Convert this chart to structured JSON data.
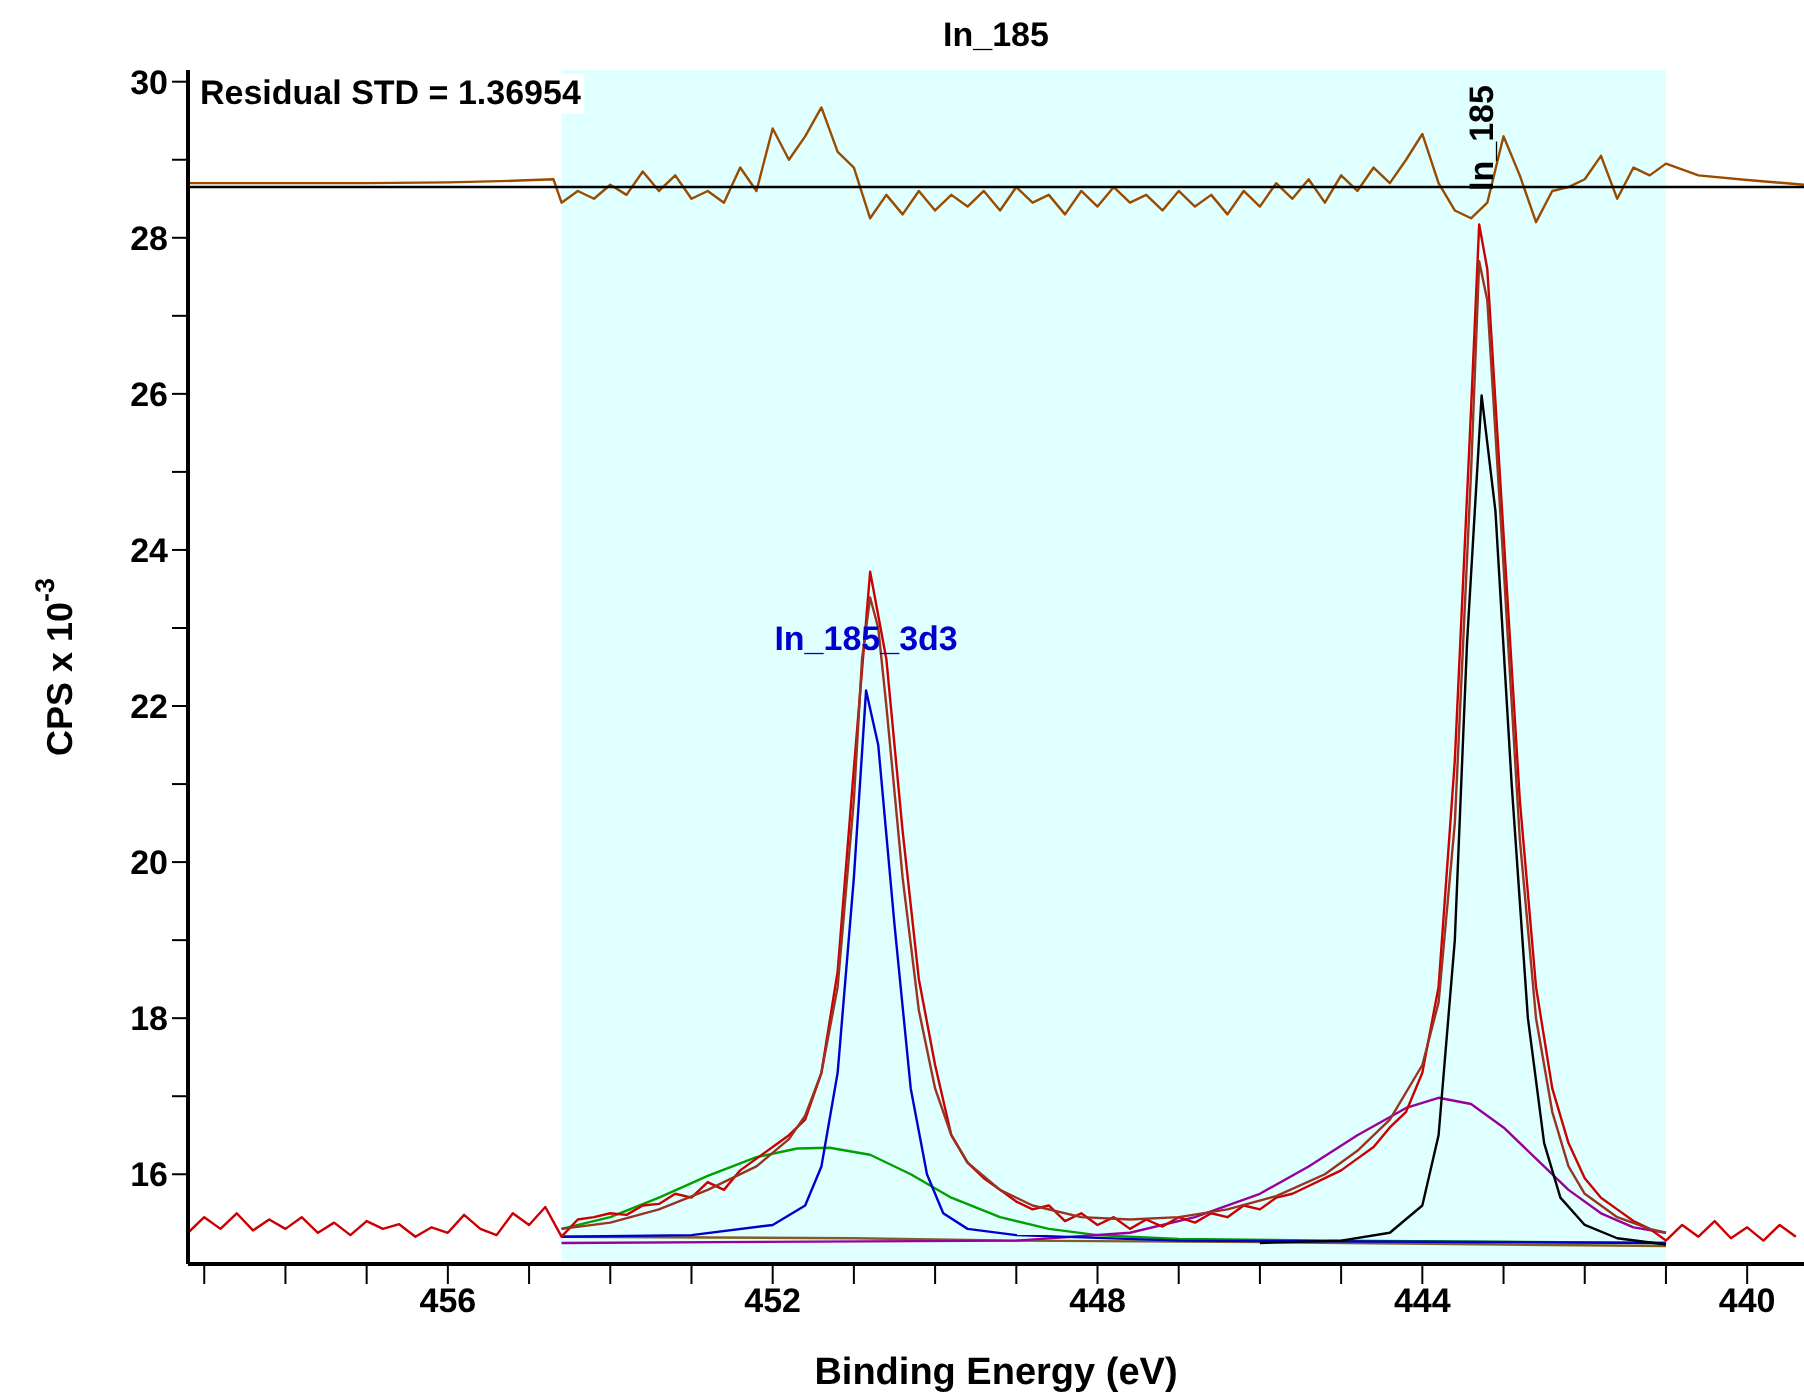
{
  "chart_data": {
    "type": "line",
    "title": "In_185",
    "xlabel": "Binding Energy (eV)",
    "ylabel": "CPS x 10$^{-3}$",
    "xlim": [
      459.2,
      439.3
    ],
    "ylim": [
      14.85,
      30.15
    ],
    "xticks": [
      {
        "value": 459,
        "label": null
      },
      {
        "value": 458,
        "label": null
      },
      {
        "value": 457,
        "label": null
      },
      456,
      {
        "value": 455,
        "label": null
      },
      {
        "value": 454,
        "label": null
      },
      {
        "value": 453,
        "label": null
      },
      452,
      {
        "value": 451,
        "label": null
      },
      {
        "value": 450,
        "label": null
      },
      {
        "value": 449,
        "label": null
      },
      448,
      {
        "value": 447,
        "label": null
      },
      {
        "value": 446,
        "label": null
      },
      {
        "value": 445,
        "label": null
      },
      444,
      {
        "value": 443,
        "label": null
      },
      {
        "value": 442,
        "label": null
      },
      {
        "value": 441,
        "label": null
      },
      440
    ],
    "yticks": [
      16,
      {
        "value": 17,
        "label": null
      },
      18,
      {
        "value": 19,
        "label": null
      },
      20,
      {
        "value": 21,
        "label": null
      },
      22,
      {
        "value": 23,
        "label": null
      },
      24,
      {
        "value": 25,
        "label": null
      },
      26,
      {
        "value": 27,
        "label": null
      },
      28,
      {
        "value": 29,
        "label": null
      },
      30
    ],
    "grid": false,
    "marker": "none",
    "line_style": "solid",
    "bands": [
      {
        "axis": "x",
        "from": 454.6,
        "to": 441.0,
        "color": "#e0ffff"
      }
    ],
    "ref_lines": [
      {
        "axis": "y",
        "value": 28.65,
        "color": "#000000"
      }
    ],
    "annotations": [
      "Residual STD = 1.36954"
    ],
    "series": [
      {
        "color": "#994c00",
        "x": [
          459.2,
          457.0,
          456.0,
          455.2,
          454.7,
          454.6,
          454.4,
          454.2,
          454.0,
          453.8,
          453.6,
          453.4,
          453.2,
          453.0,
          452.8,
          452.6,
          452.4,
          452.2,
          452.0,
          451.8,
          451.6,
          451.4,
          451.2,
          451.0,
          450.8,
          450.6,
          450.4,
          450.2,
          450.0,
          449.8,
          449.6,
          449.4,
          449.2,
          449.0,
          448.8,
          448.6,
          448.4,
          448.2,
          448.0,
          447.8,
          447.6,
          447.4,
          447.2,
          447.0,
          446.8,
          446.6,
          446.4,
          446.2,
          446.0,
          445.8,
          445.6,
          445.4,
          445.2,
          445.0,
          444.8,
          444.6,
          444.4,
          444.2,
          444.0,
          443.8,
          443.6,
          443.4,
          443.2,
          443.0,
          442.8,
          442.6,
          442.4,
          442.2,
          442.0,
          441.8,
          441.6,
          441.4,
          441.2,
          441.0,
          440.6,
          440.0,
          439.3
        ],
        "values": [
          28.7,
          28.7,
          28.71,
          28.73,
          28.75,
          28.45,
          28.6,
          28.5,
          28.68,
          28.55,
          28.85,
          28.6,
          28.8,
          28.5,
          28.6,
          28.45,
          28.9,
          28.6,
          29.4,
          29.0,
          29.3,
          29.67,
          29.1,
          28.9,
          28.25,
          28.55,
          28.3,
          28.6,
          28.35,
          28.55,
          28.4,
          28.6,
          28.35,
          28.65,
          28.45,
          28.55,
          28.3,
          28.6,
          28.4,
          28.65,
          28.45,
          28.55,
          28.35,
          28.6,
          28.4,
          28.55,
          28.3,
          28.6,
          28.4,
          28.7,
          28.5,
          28.75,
          28.45,
          28.8,
          28.6,
          28.9,
          28.7,
          29.0,
          29.33,
          28.7,
          28.35,
          28.25,
          28.45,
          29.3,
          28.8,
          28.2,
          28.6,
          28.65,
          28.75,
          29.05,
          28.5,
          28.9,
          28.8,
          28.95,
          28.8,
          28.74,
          28.68
        ]
      },
      {
        "color": "#806020",
        "x": [
          454.6,
          451.0,
          449.0,
          446.0,
          443.0,
          441.0
        ],
        "values": [
          15.2,
          15.18,
          15.15,
          15.13,
          15.1,
          15.08
        ]
      },
      {
        "color": "#00a000",
        "x": [
          454.6,
          454.0,
          453.4,
          452.8,
          452.2,
          451.7,
          451.3,
          450.8,
          450.3,
          449.8,
          449.2,
          448.6,
          448.0,
          447.0,
          445.0,
          441.0
        ],
        "values": [
          15.3,
          15.45,
          15.7,
          15.98,
          16.22,
          16.33,
          16.34,
          16.25,
          16.0,
          15.7,
          15.45,
          15.3,
          15.22,
          15.17,
          15.15,
          15.12
        ]
      },
      {
        "color": "#990099",
        "x": [
          454.6,
          449.0,
          447.6,
          446.8,
          446.0,
          445.4,
          444.8,
          444.2,
          443.8,
          443.4,
          443.0,
          442.6,
          442.2,
          441.8,
          441.4,
          441.0
        ],
        "values": [
          15.12,
          15.15,
          15.25,
          15.45,
          15.75,
          16.1,
          16.5,
          16.85,
          16.98,
          16.9,
          16.6,
          16.2,
          15.8,
          15.5,
          15.32,
          15.25
        ]
      },
      {
        "name": "In_185_3d3",
        "color": "#0000cc",
        "x": [
          454.6,
          453.0,
          452.0,
          451.6,
          451.4,
          451.2,
          451.0,
          450.85,
          450.7,
          450.5,
          450.3,
          450.1,
          449.9,
          449.6,
          449.0,
          447.0,
          441.0
        ],
        "values": [
          15.2,
          15.22,
          15.35,
          15.6,
          16.1,
          17.3,
          19.8,
          22.2,
          21.5,
          19.2,
          17.1,
          16.0,
          15.5,
          15.3,
          15.22,
          15.15,
          15.12
        ]
      },
      {
        "name": "In_185",
        "color": "#000000",
        "x": [
          446.0,
          445.0,
          444.4,
          444.0,
          443.8,
          443.6,
          443.45,
          443.27,
          443.1,
          442.9,
          442.7,
          442.5,
          442.3,
          442.0,
          441.6,
          441.0
        ],
        "values": [
          15.12,
          15.15,
          15.25,
          15.6,
          16.5,
          19.0,
          22.8,
          25.98,
          24.5,
          21.0,
          18.0,
          16.4,
          15.7,
          15.35,
          15.18,
          15.1
        ]
      },
      {
        "color": "#cc0000",
        "x": [
          459.2,
          459.0,
          458.8,
          458.6,
          458.4,
          458.2,
          458.0,
          457.8,
          457.6,
          457.4,
          457.2,
          457.0,
          456.8,
          456.6,
          456.4,
          456.2,
          456.0,
          455.8,
          455.6,
          455.4,
          455.2,
          455.0,
          454.8,
          454.6,
          454.4,
          454.2,
          454.0,
          453.8,
          453.6,
          453.4,
          453.2,
          453.0,
          452.8,
          452.6,
          452.4,
          452.2,
          452.0,
          451.8,
          451.6,
          451.4,
          451.2,
          451.0,
          450.8,
          450.6,
          450.4,
          450.2,
          450.0,
          449.8,
          449.6,
          449.4,
          449.2,
          449.0,
          448.8,
          448.6,
          448.4,
          448.2,
          448.0,
          447.8,
          447.6,
          447.4,
          447.2,
          447.0,
          446.8,
          446.6,
          446.4,
          446.2,
          446.0,
          445.8,
          445.6,
          445.4,
          445.2,
          445.0,
          444.8,
          444.6,
          444.4,
          444.2,
          444.0,
          443.8,
          443.6,
          443.4,
          443.3,
          443.2,
          443.0,
          442.8,
          442.6,
          442.4,
          442.2,
          442.0,
          441.8,
          441.6,
          441.4,
          441.2,
          441.0,
          440.8,
          440.6,
          440.4,
          440.2,
          440.0,
          439.8,
          439.6,
          439.4
        ],
        "values": [
          15.25,
          15.45,
          15.3,
          15.5,
          15.28,
          15.42,
          15.3,
          15.45,
          15.25,
          15.38,
          15.22,
          15.4,
          15.3,
          15.36,
          15.2,
          15.32,
          15.25,
          15.48,
          15.3,
          15.22,
          15.5,
          15.35,
          15.58,
          15.2,
          15.42,
          15.45,
          15.5,
          15.48,
          15.6,
          15.62,
          15.75,
          15.7,
          15.9,
          15.8,
          16.05,
          16.2,
          16.35,
          16.5,
          16.7,
          17.3,
          18.6,
          21.2,
          23.72,
          22.6,
          20.4,
          18.5,
          17.4,
          16.5,
          16.15,
          15.95,
          15.8,
          15.65,
          15.55,
          15.6,
          15.4,
          15.5,
          15.35,
          15.45,
          15.3,
          15.42,
          15.33,
          15.45,
          15.38,
          15.5,
          15.45,
          15.6,
          15.55,
          15.7,
          15.75,
          15.85,
          15.95,
          16.05,
          16.2,
          16.35,
          16.6,
          16.8,
          17.3,
          18.4,
          21.3,
          25.8,
          28.17,
          27.6,
          24.2,
          20.8,
          18.4,
          17.1,
          16.4,
          15.95,
          15.7,
          15.55,
          15.4,
          15.3,
          15.15,
          15.35,
          15.2,
          15.4,
          15.18,
          15.32,
          15.15,
          15.35,
          15.2
        ]
      },
      {
        "color": "#993322",
        "x": [
          454.6,
          454.0,
          453.4,
          452.8,
          452.2,
          451.8,
          451.6,
          451.4,
          451.2,
          451.0,
          450.9,
          450.8,
          450.7,
          450.6,
          450.4,
          450.2,
          450.0,
          449.8,
          449.6,
          449.2,
          448.8,
          448.2,
          447.6,
          447.0,
          446.4,
          445.8,
          445.2,
          444.8,
          444.4,
          444.0,
          443.8,
          443.6,
          443.4,
          443.3,
          443.2,
          443.0,
          442.8,
          442.6,
          442.4,
          442.2,
          442.0,
          441.6,
          441.2,
          441.0
        ],
        "values": [
          15.3,
          15.38,
          15.55,
          15.8,
          16.1,
          16.45,
          16.75,
          17.3,
          18.4,
          20.8,
          22.6,
          23.39,
          23.0,
          22.0,
          19.8,
          18.1,
          17.1,
          16.5,
          16.15,
          15.8,
          15.6,
          15.45,
          15.42,
          15.45,
          15.55,
          15.72,
          16.0,
          16.3,
          16.7,
          17.4,
          18.2,
          20.5,
          25.0,
          27.7,
          27.2,
          23.8,
          20.3,
          18.0,
          16.8,
          16.1,
          15.75,
          15.45,
          15.3,
          15.25
        ]
      }
    ]
  }
}
